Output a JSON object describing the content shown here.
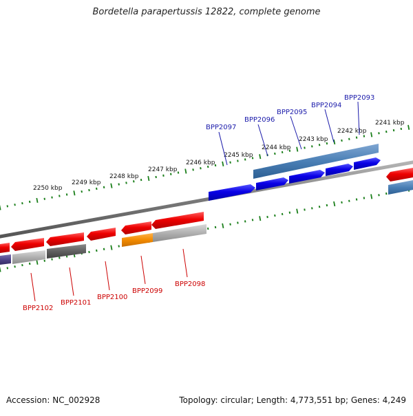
{
  "title": "Bordetella parapertussis 12822, complete genome",
  "footer": {
    "accession": "Accession: NC_002928",
    "summary": "Topology: circular; Length: 4,773,551 bp; Genes: 4,249"
  },
  "kbp_labels": [
    {
      "kbp": 2241,
      "text": "2241 kbp"
    },
    {
      "kbp": 2242,
      "text": "2242 kbp"
    },
    {
      "kbp": 2243,
      "text": "2243 kbp"
    },
    {
      "kbp": 2244,
      "text": "2244 kbp"
    },
    {
      "kbp": 2245,
      "text": "2245 kbp"
    },
    {
      "kbp": 2246,
      "text": "2246 kbp"
    },
    {
      "kbp": 2247,
      "text": "2247 kbp"
    },
    {
      "kbp": 2248,
      "text": "2248 kbp"
    },
    {
      "kbp": 2249,
      "text": "2249 kbp"
    },
    {
      "kbp": 2250,
      "text": "2250 kbp"
    }
  ],
  "upper_genes": [
    {
      "id": "BPP2093",
      "label": "BPP2093"
    },
    {
      "id": "BPP2094",
      "label": "BPP2094"
    },
    {
      "id": "BPP2095",
      "label": "BPP2095"
    },
    {
      "id": "BPP2096",
      "label": "BPP2096"
    },
    {
      "id": "BPP2097",
      "label": "BPP2097"
    }
  ],
  "lower_genes": [
    {
      "id": "BPP2098",
      "label": "BPP2098"
    },
    {
      "id": "BPP2099",
      "label": "BPP2099"
    },
    {
      "id": "BPP2100",
      "label": "BPP2100"
    },
    {
      "id": "BPP2101",
      "label": "BPP2101"
    },
    {
      "id": "BPP2102",
      "label": "BPP2102"
    }
  ],
  "colors": {
    "forward_gene": "#0a00e6",
    "reverse_gene": "#ee0000",
    "forward_cds_band": "#4a7fb5",
    "reverse_band_light": "#b0b0b0",
    "reverse_band_dark": "#606060",
    "highlight_band": "#f28a00",
    "purple_band": "#504488",
    "backbone": "#7a7a7a",
    "tick": "#1b7f1b",
    "label_forward": "#1a1aaa",
    "label_reverse": "#cc0000"
  }
}
